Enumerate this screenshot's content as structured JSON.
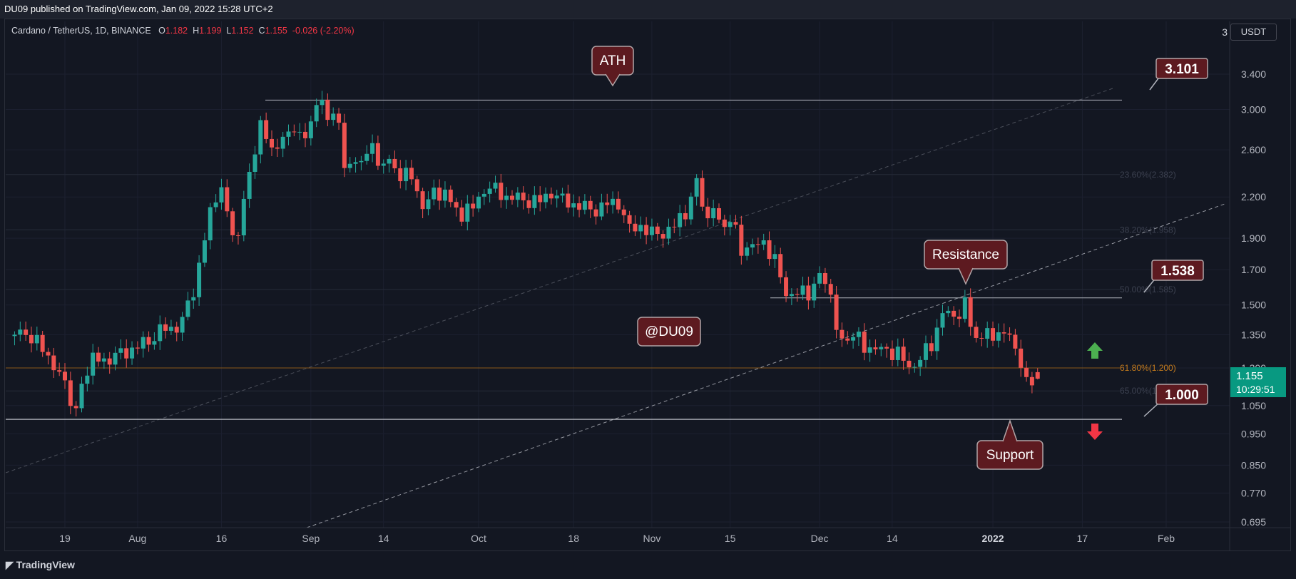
{
  "publisher": "DU09 published on TradingView.com, Jan 09, 2022 15:28 UTC+2",
  "legend": {
    "symbol": "Cardano / TetherUS, 1D, BINANCE",
    "o_label": "O",
    "o_value": "1.182",
    "h_label": "H",
    "h_value": "1.199",
    "l_label": "L",
    "l_value": "1.152",
    "c_label": "C",
    "c_value": "1.155",
    "change": "-0.026 (-2.20%)"
  },
  "currency_button": "USDT",
  "currency_icon_digit": "3",
  "brand": "TradingView",
  "colors": {
    "up": "#26a69a",
    "down": "#ef5350",
    "annotation_bg": "#5d1a20",
    "annotation_border": "#b2a5a7",
    "fib_orange": "#8b5a1a",
    "arrow_up": "#4caf50",
    "arrow_down": "#f23645",
    "last_price_bg": "#089981"
  },
  "chart_data": {
    "type": "candlestick",
    "title": "Cardano / TetherUS, 1D, BINANCE",
    "xlabel": "",
    "ylabel": "",
    "y_scale": "log",
    "ylim": [
      0.695,
      3.8
    ],
    "y_ticks": [
      "3.400",
      "3.000",
      "2.600",
      "2.200",
      "1.900",
      "1.700",
      "1.500",
      "1.350",
      "1.200",
      "1.050",
      "0.950",
      "0.850",
      "0.770",
      "0.695"
    ],
    "x_ticks": [
      "19",
      "Aug",
      "16",
      "Sep",
      "14",
      "Oct",
      "18",
      "Nov",
      "15",
      "Dec",
      "14",
      "2022",
      "17",
      "Feb"
    ],
    "x_tick_dates": [
      "2021-07-19",
      "2021-08-01",
      "2021-08-16",
      "2021-09-01",
      "2021-09-14",
      "2021-10-01",
      "2021-10-18",
      "2021-11-01",
      "2021-11-15",
      "2021-12-01",
      "2021-12-14",
      "2022-01-01",
      "2022-01-17",
      "2022-02-01"
    ],
    "ohlc_close_path": [
      [
        "2021-07-10",
        1.33
      ],
      [
        "2021-07-12",
        1.34
      ],
      [
        "2021-07-14",
        1.3
      ],
      [
        "2021-07-16",
        1.27
      ],
      [
        "2021-07-18",
        1.19
      ],
      [
        "2021-07-20",
        1.09
      ],
      [
        "2021-07-21",
        1.03
      ],
      [
        "2021-07-22",
        1.13
      ],
      [
        "2021-07-24",
        1.22
      ],
      [
        "2021-07-26",
        1.25
      ],
      [
        "2021-07-28",
        1.27
      ],
      [
        "2021-07-30",
        1.29
      ],
      [
        "2021-08-01",
        1.28
      ],
      [
        "2021-08-03",
        1.3
      ],
      [
        "2021-08-05",
        1.35
      ],
      [
        "2021-08-07",
        1.39
      ],
      [
        "2021-08-09",
        1.44
      ],
      [
        "2021-08-11",
        1.6
      ],
      [
        "2021-08-13",
        1.89
      ],
      [
        "2021-08-14",
        2.12
      ],
      [
        "2021-08-16",
        2.2
      ],
      [
        "2021-08-17",
        2.08
      ],
      [
        "2021-08-19",
        1.92
      ],
      [
        "2021-08-20",
        2.26
      ],
      [
        "2021-08-22",
        2.58
      ],
      [
        "2021-08-23",
        2.89
      ],
      [
        "2021-08-24",
        2.62
      ],
      [
        "2021-08-26",
        2.58
      ],
      [
        "2021-08-27",
        2.72
      ],
      [
        "2021-08-29",
        2.85
      ],
      [
        "2021-08-31",
        2.75
      ],
      [
        "2021-09-01",
        2.88
      ],
      [
        "2021-09-02",
        2.97
      ],
      [
        "2021-09-03",
        3.05
      ],
      [
        "2021-09-05",
        2.95
      ],
      [
        "2021-09-06",
        2.93
      ],
      [
        "2021-09-07",
        2.49
      ],
      [
        "2021-09-08",
        2.48
      ],
      [
        "2021-09-10",
        2.45
      ],
      [
        "2021-09-12",
        2.6
      ],
      [
        "2021-09-13",
        2.45
      ],
      [
        "2021-09-15",
        2.56
      ],
      [
        "2021-09-17",
        2.39
      ],
      [
        "2021-09-19",
        2.35
      ],
      [
        "2021-09-21",
        2.08
      ],
      [
        "2021-09-23",
        2.21
      ],
      [
        "2021-09-25",
        2.25
      ],
      [
        "2021-09-27",
        2.14
      ],
      [
        "2021-09-28",
        2.08
      ],
      [
        "2021-09-30",
        2.12
      ],
      [
        "2021-10-02",
        2.21
      ],
      [
        "2021-10-04",
        2.24
      ],
      [
        "2021-10-06",
        2.2
      ],
      [
        "2021-10-08",
        2.24
      ],
      [
        "2021-10-10",
        2.19
      ],
      [
        "2021-10-12",
        2.17
      ],
      [
        "2021-10-14",
        2.19
      ],
      [
        "2021-10-16",
        2.15
      ],
      [
        "2021-10-18",
        2.14
      ],
      [
        "2021-10-20",
        2.16
      ],
      [
        "2021-10-22",
        2.13
      ],
      [
        "2021-10-24",
        2.15
      ],
      [
        "2021-10-26",
        2.12
      ],
      [
        "2021-10-28",
        1.93
      ],
      [
        "2021-10-30",
        1.98
      ],
      [
        "2021-11-01",
        1.96
      ],
      [
        "2021-11-03",
        1.97
      ],
      [
        "2021-11-05",
        1.99
      ],
      [
        "2021-11-07",
        2.06
      ],
      [
        "2021-11-09",
        2.27
      ],
      [
        "2021-11-10",
        2.11
      ],
      [
        "2021-11-12",
        2.08
      ],
      [
        "2021-11-14",
        2.05
      ],
      [
        "2021-11-16",
        2.01
      ],
      [
        "2021-11-17",
        1.82
      ],
      [
        "2021-11-19",
        1.8
      ],
      [
        "2021-11-21",
        1.87
      ],
      [
        "2021-11-23",
        1.76
      ],
      [
        "2021-11-25",
        1.6
      ],
      [
        "2021-11-27",
        1.57
      ],
      [
        "2021-11-29",
        1.56
      ],
      [
        "2021-12-01",
        1.63
      ],
      [
        "2021-12-03",
        1.54
      ],
      [
        "2021-12-04",
        1.34
      ],
      [
        "2021-12-06",
        1.36
      ],
      [
        "2021-12-08",
        1.38
      ],
      [
        "2021-12-09",
        1.3
      ],
      [
        "2021-12-11",
        1.25
      ],
      [
        "2021-12-13",
        1.27
      ],
      [
        "2021-12-15",
        1.26
      ],
      [
        "2021-12-17",
        1.23
      ],
      [
        "2021-12-19",
        1.25
      ],
      [
        "2021-12-21",
        1.31
      ],
      [
        "2021-12-23",
        1.43
      ],
      [
        "2021-12-25",
        1.42
      ],
      [
        "2021-12-27",
        1.5
      ],
      [
        "2021-12-28",
        1.41
      ],
      [
        "2021-12-30",
        1.35
      ],
      [
        "2022-01-01",
        1.36
      ],
      [
        "2022-01-03",
        1.34
      ],
      [
        "2022-01-04",
        1.33
      ],
      [
        "2022-01-05",
        1.25
      ],
      [
        "2022-01-06",
        1.21
      ],
      [
        "2022-01-07",
        1.18
      ],
      [
        "2022-01-08",
        1.16
      ],
      [
        "2022-01-09",
        1.155
      ]
    ],
    "horizontal_levels": [
      {
        "value": 3.101,
        "label": "ATH"
      },
      {
        "value": 1.538,
        "label": "Resistance"
      },
      {
        "value": 1.0,
        "label": "Support"
      }
    ],
    "fib_levels": [
      {
        "label": "23.60%(2.382)",
        "value": 2.382
      },
      {
        "label": "38.20%(1.958)",
        "value": 1.958
      },
      {
        "label": "50.00%(1.585)",
        "value": 1.585
      },
      {
        "label": "61.80%(1.200)",
        "value": 1.2
      },
      {
        "label": "65.00%(1.106)",
        "value": 1.106
      }
    ],
    "price_tags": [
      "3.101",
      "1.538",
      "1.000"
    ],
    "last_price": "1.155",
    "countdown": "10:29:51",
    "watermark": "@DU09",
    "grid": true
  }
}
